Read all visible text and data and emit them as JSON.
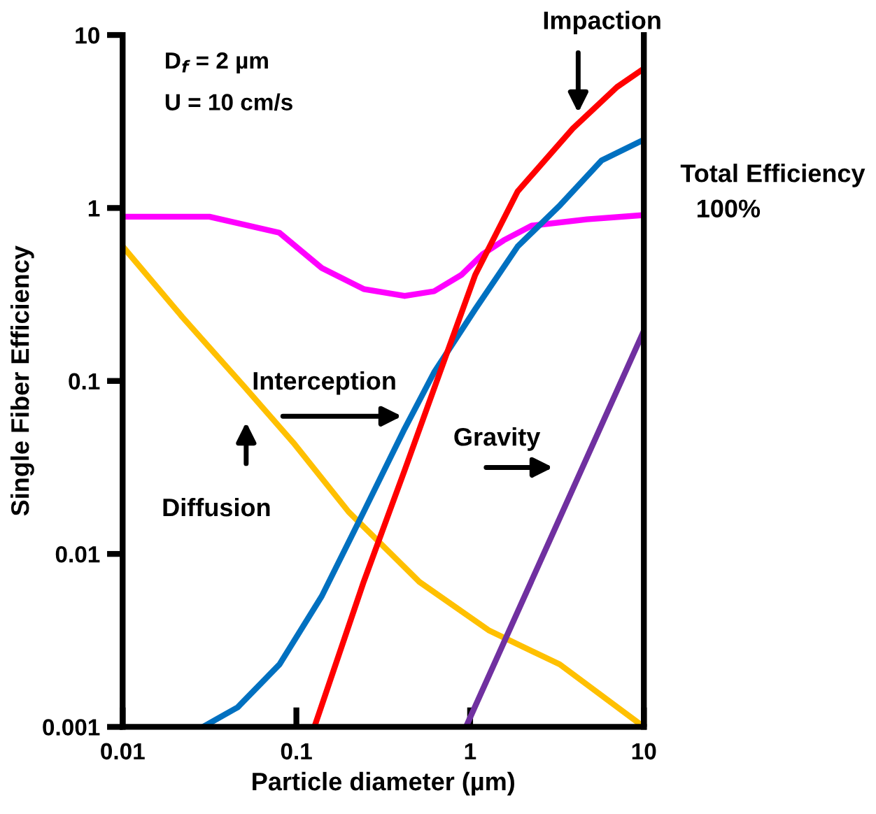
{
  "chart_data": {
    "type": "line",
    "xlabel": "Particle diameter (µm)",
    "ylabel": "Single Fiber Efficiency",
    "log": "xy",
    "xlim": [
      0.01,
      10
    ],
    "ylim": [
      0.001,
      10
    ],
    "xticks": [
      0.01,
      0.1,
      1,
      10
    ],
    "yticks": [
      0.001,
      0.01,
      0.1,
      1,
      10
    ],
    "grid": false,
    "marker": "none",
    "line_style": "solid",
    "series": [
      {
        "color": "#ff00ff",
        "x": [
          0.01,
          0.0316,
          0.0798,
          0.14,
          0.244,
          0.42,
          0.62,
          0.89,
          1.18,
          1.56,
          2.26,
          4.7,
          10
        ],
        "values": [
          0.89,
          0.89,
          0.72,
          0.45,
          0.34,
          0.31,
          0.33,
          0.41,
          0.54,
          0.65,
          0.79,
          0.86,
          0.91
        ]
      },
      {
        "color": "#ffc000",
        "x": [
          0.01,
          0.022,
          0.05,
          0.096,
          0.2,
          0.51,
          1.29,
          3.28,
          10
        ],
        "values": [
          0.6,
          0.235,
          0.093,
          0.044,
          0.0175,
          0.0069,
          0.0036,
          0.0023,
          0.001
        ]
      },
      {
        "color": "#0070c0",
        "x": [
          0.029,
          0.046,
          0.08,
          0.14,
          0.244,
          0.42,
          0.62,
          1.07,
          1.88,
          3.3,
          5.7,
          10
        ],
        "values": [
          0.001,
          0.0013,
          0.0023,
          0.0057,
          0.0175,
          0.053,
          0.112,
          0.26,
          0.6,
          1.04,
          1.88,
          2.48
        ]
      },
      {
        "color": "#ff0000",
        "x": [
          0.127,
          0.244,
          0.42,
          0.67,
          1.07,
          1.88,
          3.9,
          7.0,
          10
        ],
        "values": [
          0.001,
          0.0069,
          0.0305,
          0.112,
          0.41,
          1.25,
          2.88,
          5.0,
          6.4
        ]
      },
      {
        "color": "#7030a0",
        "x": [
          0.946,
          10
        ],
        "values": [
          0.001,
          0.195
        ]
      }
    ],
    "annotations": [
      "D$_{f}$ = 2 µm",
      "U = 10 cm/s",
      "Impaction",
      "Interception",
      "Diffusion",
      "Gravity",
      "Total Efficiency",
      "100%"
    ]
  }
}
